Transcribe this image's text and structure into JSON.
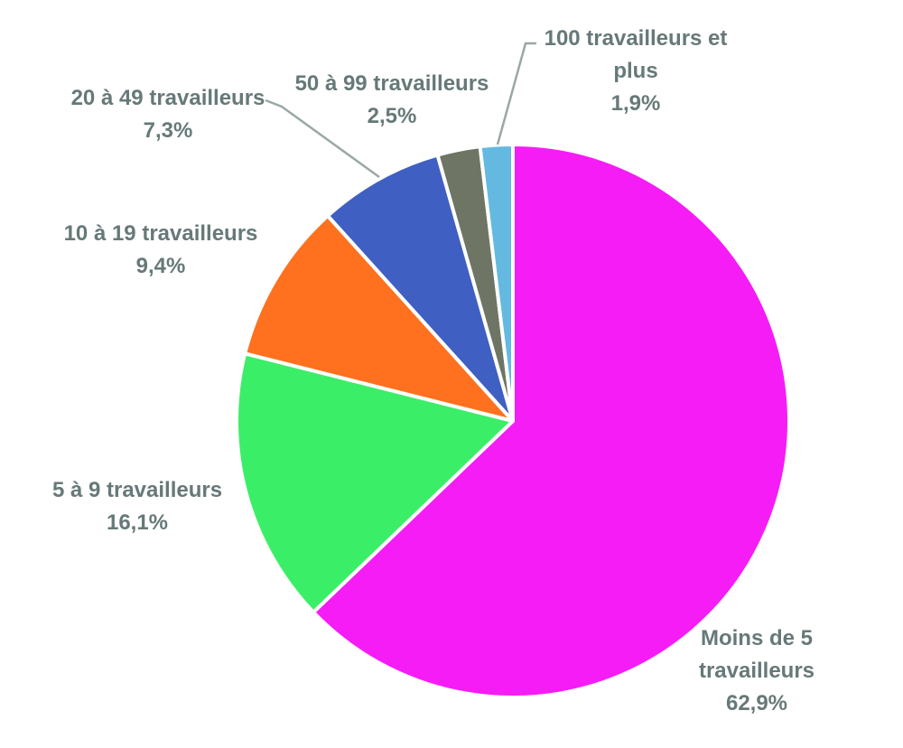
{
  "chart_data": {
    "type": "pie",
    "slices": [
      {
        "label_lines": [
          "Moins de 5",
          "travailleurs"
        ],
        "value": 62.9,
        "value_text": "62,9%",
        "color": "#F61CF6"
      },
      {
        "label_lines": [
          "5 à 9 travailleurs"
        ],
        "value": 16.1,
        "value_text": "16,1%",
        "color": "#3BEE67"
      },
      {
        "label_lines": [
          "10 à 19 travailleurs"
        ],
        "value": 9.4,
        "value_text": "9,4%",
        "color": "#FF711F"
      },
      {
        "label_lines": [
          "20 à 49 travailleurs"
        ],
        "value": 7.3,
        "value_text": "7,3%",
        "color": "#3F5FC2"
      },
      {
        "label_lines": [
          "50 à 99 travailleurs"
        ],
        "value": 2.5,
        "value_text": "2,5%",
        "color": "#6E7564"
      },
      {
        "label_lines": [
          "100 travailleurs et",
          "plus"
        ],
        "value": 1.9,
        "value_text": "1,9%",
        "color": "#64B9E0"
      }
    ],
    "start_angle_deg": 0,
    "direction": "clockwise",
    "legend": "none",
    "label_color": "#667978",
    "leader_line_color": "#9AA8A7"
  }
}
